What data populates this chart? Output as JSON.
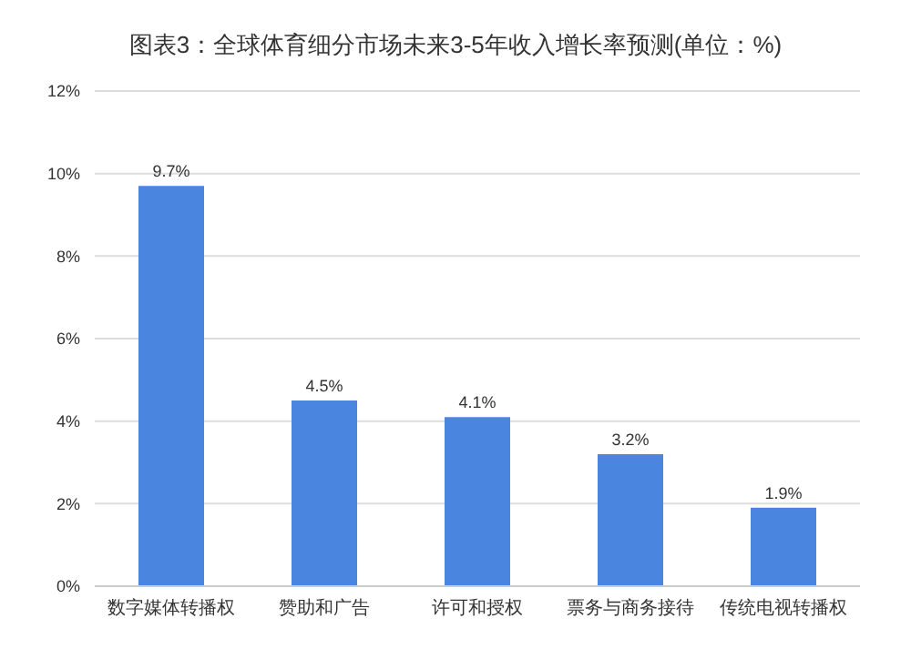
{
  "chart_data": {
    "type": "bar",
    "title": "图表3：全球体育细分市场未来3-5年收入增长率预测(单位：%)",
    "categories": [
      "数字媒体转播权",
      "赞助和广告",
      "许可和授权",
      "票务与商务接待",
      "传统电视转播权"
    ],
    "values": [
      9.7,
      4.5,
      4.1,
      3.2,
      1.9
    ],
    "color": "#4a86e0",
    "ylim": [
      0,
      12
    ],
    "yticks": [
      {
        "value": 0,
        "label": "0%"
      },
      {
        "value": 2,
        "label": "2%"
      },
      {
        "value": 4,
        "label": "4%"
      },
      {
        "value": 6,
        "label": "6%"
      },
      {
        "value": 8,
        "label": "8%"
      },
      {
        "value": 10,
        "label": "10%"
      },
      {
        "value": 12,
        "label": "12%"
      }
    ],
    "value_labels": [
      "9.7%",
      "4.5%",
      "4.1%",
      "3.2%",
      "1.9%"
    ],
    "grid": "y"
  }
}
